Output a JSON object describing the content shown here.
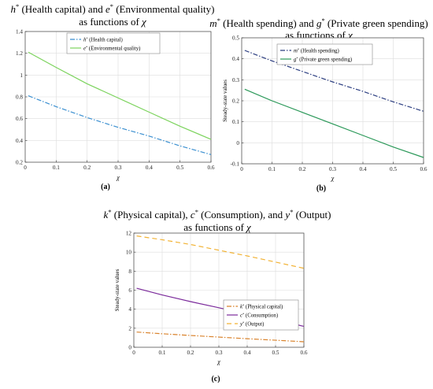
{
  "chart_data": [
    {
      "type": "line",
      "panel_label": "(a)",
      "title_lines": [
        [
          {
            "t": "h",
            "i": true
          },
          {
            "t": "*",
            "sup": true
          },
          {
            "t": " (Health capital) and "
          },
          {
            "t": "e",
            "i": true
          },
          {
            "t": "*",
            "sup": true
          },
          {
            "t": " (Environmental quality)"
          }
        ],
        [
          {
            "t": "as functions of "
          },
          {
            "t": "χ",
            "i": true
          }
        ]
      ],
      "xlabel": "χ",
      "ylabel": "",
      "xlim": [
        0,
        0.6
      ],
      "ylim": [
        0.2,
        1.4
      ],
      "xticks": [
        0,
        0.1,
        0.2,
        0.3,
        0.4,
        0.5,
        0.6
      ],
      "yticks": [
        0.2,
        0.4,
        0.6,
        0.8,
        1,
        1.2,
        1.4
      ],
      "ytick_labels": [
        "0.2",
        "0.4",
        "0.6",
        "0.8",
        "1",
        "1.2",
        "1.4"
      ],
      "grid": true,
      "legend_position": "top-center",
      "series": [
        {
          "name": "(Health capital)",
          "var": "h",
          "color": "#3a8fd0",
          "dash": "6,2,1.5,2",
          "x": [
            0.01,
            0.1,
            0.2,
            0.3,
            0.4,
            0.5,
            0.6
          ],
          "y": [
            0.81,
            0.71,
            0.61,
            0.52,
            0.44,
            0.35,
            0.27
          ]
        },
        {
          "name": "(Environmental quality)",
          "var": "e",
          "color": "#7bd35c",
          "dash": "",
          "x": [
            0.01,
            0.1,
            0.2,
            0.3,
            0.4,
            0.5,
            0.6
          ],
          "y": [
            1.21,
            1.07,
            0.92,
            0.79,
            0.66,
            0.53,
            0.41
          ]
        }
      ]
    },
    {
      "type": "line",
      "panel_label": "(b)",
      "title_lines": [
        [
          {
            "t": "m",
            "i": true
          },
          {
            "t": "*",
            "sup": true
          },
          {
            "t": " (Health spending) and "
          },
          {
            "t": "g",
            "i": true
          },
          {
            "t": "*",
            "sup": true
          },
          {
            "t": " (Private green spending)"
          }
        ],
        [
          {
            "t": "as functions of "
          },
          {
            "t": "χ",
            "i": true
          }
        ]
      ],
      "xlabel": "χ",
      "ylabel": "Steady-state values",
      "xlim": [
        0,
        0.6
      ],
      "ylim": [
        -0.1,
        0.5
      ],
      "xticks": [
        0,
        0.1,
        0.2,
        0.3,
        0.4,
        0.5,
        0.6
      ],
      "yticks": [
        -0.1,
        0,
        0.1,
        0.2,
        0.3,
        0.4,
        0.5
      ],
      "ytick_labels": [
        "-0.1",
        "0",
        "0.1",
        "0.2",
        "0.3",
        "0.4",
        "0.5"
      ],
      "grid": true,
      "legend_position": "top-center",
      "series": [
        {
          "name": "(Health spending)",
          "var": "m",
          "color": "#2b3d80",
          "dash": "6,2,1.5,2",
          "x": [
            0.01,
            0.1,
            0.2,
            0.3,
            0.4,
            0.5,
            0.6
          ],
          "y": [
            0.44,
            0.39,
            0.34,
            0.29,
            0.245,
            0.195,
            0.15
          ]
        },
        {
          "name": "(Private green spending)",
          "var": "g",
          "color": "#2a9858",
          "dash": "",
          "x": [
            0.01,
            0.1,
            0.2,
            0.3,
            0.4,
            0.5,
            0.6
          ],
          "y": [
            0.255,
            0.2,
            0.145,
            0.09,
            0.035,
            -0.02,
            -0.07
          ]
        }
      ]
    },
    {
      "type": "line",
      "panel_label": "(c)",
      "title_lines": [
        [
          {
            "t": "k",
            "i": true
          },
          {
            "t": "*",
            "sup": true
          },
          {
            "t": " (Physical capital), "
          },
          {
            "t": "c",
            "i": true
          },
          {
            "t": "*",
            "sup": true
          },
          {
            "t": " (Consumption), and "
          },
          {
            "t": "y",
            "i": true
          },
          {
            "t": "*",
            "sup": true
          },
          {
            "t": " (Output)"
          }
        ],
        [
          {
            "t": "as functions of "
          },
          {
            "t": "χ",
            "i": true
          }
        ]
      ],
      "xlabel": "χ",
      "ylabel": "Steady-state values",
      "xlim": [
        0,
        0.6
      ],
      "ylim": [
        0,
        12
      ],
      "xticks": [
        0,
        0.1,
        0.2,
        0.3,
        0.4,
        0.5,
        0.6
      ],
      "yticks": [
        0,
        2,
        4,
        6,
        8,
        10,
        12
      ],
      "ytick_labels": [
        "0",
        "2",
        "4",
        "6",
        "8",
        "10",
        "12"
      ],
      "grid": true,
      "legend_position": "right",
      "series": [
        {
          "name": "(Physical capital)",
          "var": "k",
          "color": "#d9822b",
          "dash": "6,2,1.5,2",
          "x": [
            0.01,
            0.1,
            0.2,
            0.3,
            0.4,
            0.5,
            0.6
          ],
          "y": [
            1.6,
            1.42,
            1.24,
            1.07,
            0.9,
            0.74,
            0.58
          ]
        },
        {
          "name": "(Consumption)",
          "var": "c",
          "color": "#7b2a9b",
          "dash": "",
          "x": [
            0.01,
            0.1,
            0.2,
            0.3,
            0.4,
            0.5,
            0.6
          ],
          "y": [
            6.2,
            5.5,
            4.8,
            4.15,
            3.5,
            2.85,
            2.2
          ]
        },
        {
          "name": "(Output)",
          "var": "y",
          "color": "#f2b233",
          "dash": "6,4",
          "x": [
            0.01,
            0.1,
            0.2,
            0.3,
            0.4,
            0.5,
            0.6
          ],
          "y": [
            11.7,
            11.3,
            10.8,
            10.2,
            9.6,
            8.95,
            8.3
          ]
        }
      ]
    }
  ]
}
